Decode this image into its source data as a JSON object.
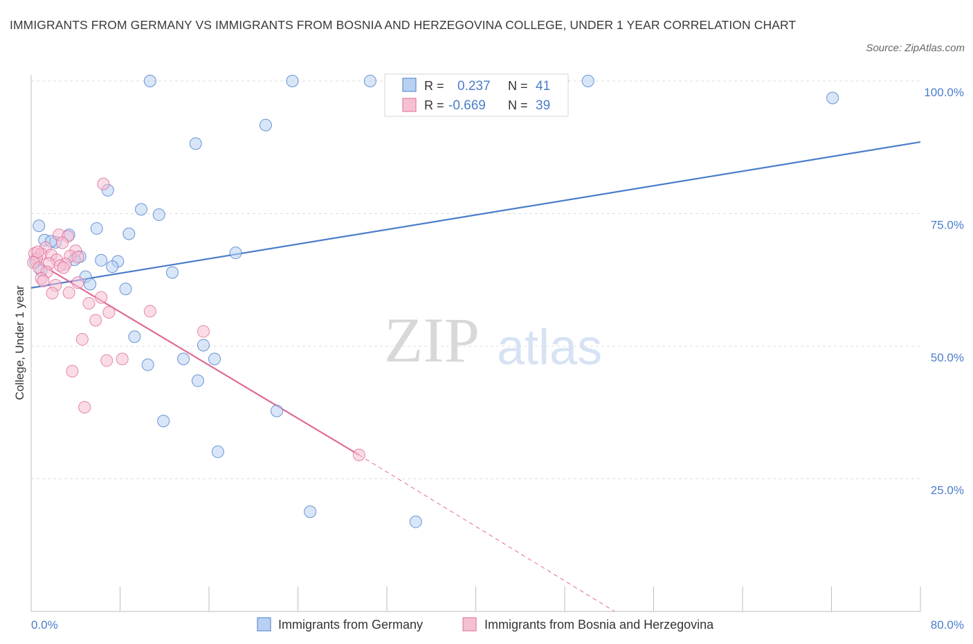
{
  "title": "IMMIGRANTS FROM GERMANY VS IMMIGRANTS FROM BOSNIA AND HERZEGOVINA COLLEGE, UNDER 1 YEAR CORRELATION CHART",
  "source": "Source: ZipAtlas.com",
  "watermark": {
    "zip": "ZIP",
    "atlas": "atlas"
  },
  "colors": {
    "germany": "#4a7cc9",
    "germany_fill": "#b8d1f3",
    "bosnia": "#e06a96",
    "bosnia_fill": "#f6c0d3",
    "axis_label": "#4a7cc9"
  },
  "chart_data": {
    "type": "scatter",
    "title": "IMMIGRANTS FROM GERMANY VS IMMIGRANTS FROM BOSNIA AND HERZEGOVINA COLLEGE, UNDER 1 YEAR CORRELATION CHART",
    "xlabel": "",
    "ylabel": "College, Under 1 year",
    "xlim": [
      0,
      80
    ],
    "ylim": [
      0,
      100
    ],
    "x_tick_labels": {
      "left": "0.0%",
      "right": "80.0%"
    },
    "y_ticks": [
      {
        "value": 100,
        "label": "100.0%"
      },
      {
        "value": 75,
        "label": "75.0%"
      },
      {
        "value": 50,
        "label": "50.0%"
      },
      {
        "value": 25,
        "label": "25.0%"
      }
    ],
    "stats": [
      {
        "r_label": "R =",
        "r_value": "0.237",
        "n_label": "N =",
        "n_value": "41"
      },
      {
        "r_label": "R =",
        "r_value": "-0.669",
        "n_label": "N =",
        "n_value": "39"
      }
    ],
    "series": [
      {
        "name": "Immigrants from Germany",
        "trend": {
          "x0": 0,
          "y0": 61,
          "x1": 80,
          "y1": 88.5
        },
        "points": [
          [
            10.7,
            100
          ],
          [
            23.5,
            100
          ],
          [
            30.5,
            100
          ],
          [
            47.8,
            100
          ],
          [
            50.1,
            100
          ],
          [
            72.1,
            96.8
          ],
          [
            21.1,
            91.7
          ],
          [
            14.8,
            88.2
          ],
          [
            6.9,
            79.4
          ],
          [
            9.9,
            75.8
          ],
          [
            11.5,
            74.8
          ],
          [
            0.7,
            72.7
          ],
          [
            5.9,
            72.2
          ],
          [
            8.8,
            71.2
          ],
          [
            1.2,
            70.0
          ],
          [
            2.2,
            69.6
          ],
          [
            1.8,
            69.8
          ],
          [
            3.4,
            71.0
          ],
          [
            18.4,
            67.6
          ],
          [
            4.4,
            66.9
          ],
          [
            6.3,
            66.2
          ],
          [
            7.8,
            66.0
          ],
          [
            7.3,
            65.0
          ],
          [
            3.9,
            66.3
          ],
          [
            0.9,
            64.3
          ],
          [
            12.7,
            63.9
          ],
          [
            4.9,
            63.1
          ],
          [
            5.3,
            61.7
          ],
          [
            8.5,
            60.8
          ],
          [
            9.3,
            51.8
          ],
          [
            15.5,
            50.2
          ],
          [
            13.7,
            47.6
          ],
          [
            16.5,
            47.6
          ],
          [
            10.5,
            46.5
          ],
          [
            15.0,
            43.5
          ],
          [
            22.1,
            37.8
          ],
          [
            11.9,
            35.9
          ],
          [
            16.8,
            30.1
          ],
          [
            25.1,
            18.8
          ],
          [
            34.6,
            16.9
          ],
          [
            0.4,
            66.0
          ]
        ]
      },
      {
        "name": "Immigrants from Bosnia and Herzegovina",
        "trend": {
          "x0": 0,
          "y0": 66.5,
          "x1": 29.5,
          "y1": 29.5,
          "dash_x1": 52.5,
          "dash_y1": 0
        },
        "points": [
          [
            6.5,
            80.6
          ],
          [
            2.5,
            71.0
          ],
          [
            3.3,
            70.7
          ],
          [
            2.8,
            69.5
          ],
          [
            1.3,
            68.6
          ],
          [
            4.0,
            68.0
          ],
          [
            0.3,
            67.5
          ],
          [
            0.9,
            67.4
          ],
          [
            1.8,
            67.2
          ],
          [
            3.5,
            67.0
          ],
          [
            0.5,
            66.5
          ],
          [
            2.3,
            66.3
          ],
          [
            4.2,
            66.8
          ],
          [
            0.2,
            65.8
          ],
          [
            1.6,
            65.6
          ],
          [
            3.1,
            65.5
          ],
          [
            2.6,
            65.2
          ],
          [
            0.7,
            64.8
          ],
          [
            1.4,
            64.0
          ],
          [
            2.9,
            64.8
          ],
          [
            0.9,
            62.8
          ],
          [
            1.1,
            62.3
          ],
          [
            4.2,
            62.0
          ],
          [
            2.2,
            61.5
          ],
          [
            1.9,
            60.0
          ],
          [
            3.4,
            60.1
          ],
          [
            6.3,
            59.2
          ],
          [
            5.2,
            58.1
          ],
          [
            10.7,
            56.6
          ],
          [
            7.0,
            56.4
          ],
          [
            5.8,
            54.9
          ],
          [
            15.5,
            52.8
          ],
          [
            4.6,
            51.3
          ],
          [
            8.2,
            47.6
          ],
          [
            6.8,
            47.3
          ],
          [
            3.7,
            45.3
          ],
          [
            4.8,
            38.5
          ],
          [
            29.5,
            29.5
          ],
          [
            0.6,
            67.8
          ]
        ]
      }
    ]
  }
}
